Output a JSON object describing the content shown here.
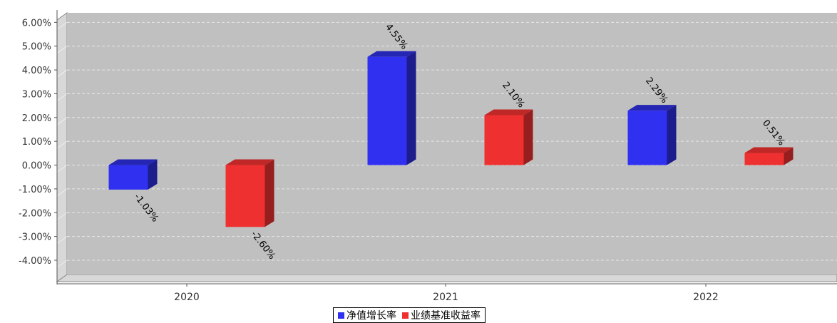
{
  "chart_data": {
    "type": "bar",
    "title": "",
    "xlabel": "",
    "ylabel": "",
    "categories": [
      "2020",
      "2021",
      "2022"
    ],
    "series": [
      {
        "name": "净值增长率",
        "values": [
          -1.03,
          4.55,
          2.29
        ],
        "labels": [
          "-1.03%",
          "4.55%",
          "2.29%"
        ],
        "color": "#3030f0"
      },
      {
        "name": "业绩基准收益率",
        "values": [
          -2.6,
          2.1,
          0.51
        ],
        "labels": [
          "-2.60%",
          "2.10%",
          "0.51%"
        ],
        "color": "#ee3030"
      }
    ],
    "yticks": [
      "6.00%",
      "5.00%",
      "4.00%",
      "3.00%",
      "2.00%",
      "1.00%",
      "0.00%",
      "-1.00%",
      "-2.00%",
      "-3.00%",
      "-4.00%"
    ],
    "ylim": [
      -4.6,
      6.4
    ],
    "grid": true,
    "legend_position": "bottom-center"
  },
  "colors": {
    "plot_background": "#c0c0c0",
    "wall_side": "#d8d8d8",
    "series1_top": "#2626b4",
    "series1_side": "#1c1c8c",
    "series2_top": "#c02828",
    "series2_side": "#961e1e"
  }
}
